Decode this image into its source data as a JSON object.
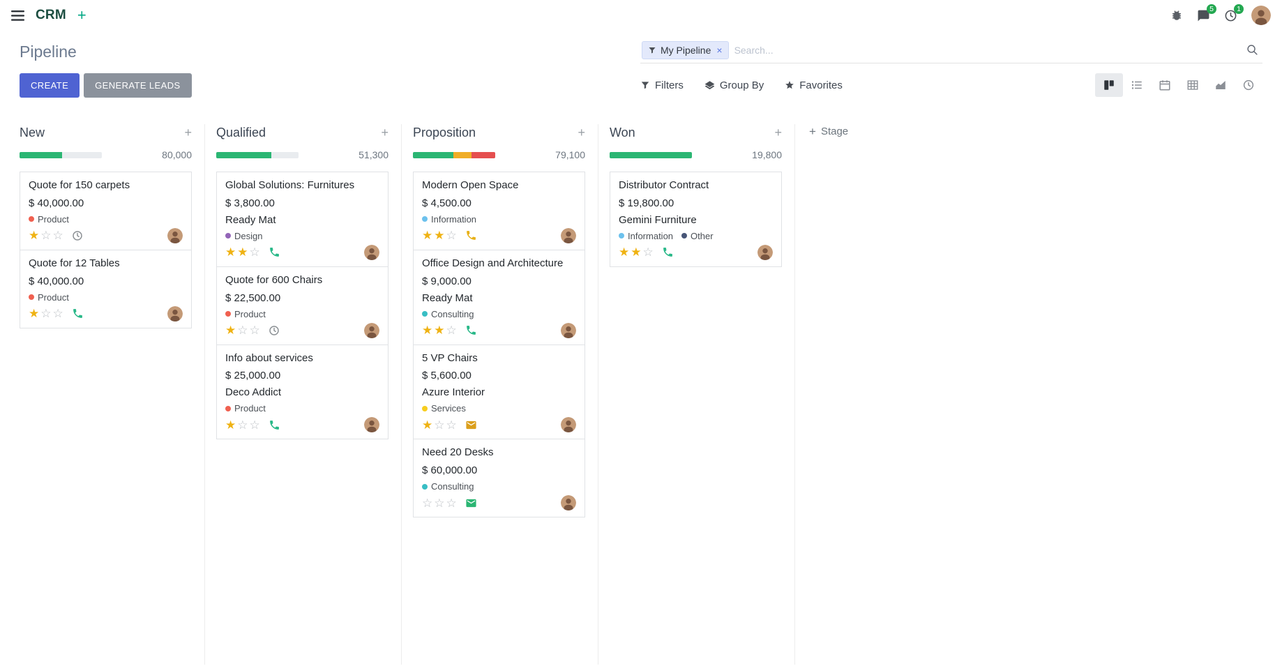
{
  "icons": {
    "plus": "+",
    "remove_facet": "×",
    "star_filled": "★",
    "star_empty": "☆"
  },
  "navbar": {
    "app_name": "CRM",
    "messages_badge": "5",
    "activities_badge": "1"
  },
  "control_panel": {
    "title": "Pipeline",
    "create_button": "CREATE",
    "generate_leads_button": "GENERATE LEADS",
    "search": {
      "facet_label": "My Pipeline",
      "placeholder": "Search..."
    },
    "toolbar": {
      "filters": "Filters",
      "group_by": "Group By",
      "favorites": "Favorites"
    }
  },
  "kanban": {
    "add_stage_label": "Stage",
    "columns": [
      {
        "name": "New",
        "count": "80,000",
        "progress": [
          {
            "color": "#2bb673",
            "pct": 52
          }
        ],
        "cards": [
          {
            "title": "Quote for 150 carpets",
            "amount": "$ 40,000.00",
            "company": "",
            "tags": [
              {
                "label": "Product",
                "color": "#f06050"
              }
            ],
            "stars": 1,
            "activity": {
              "type": "clock",
              "color": "#8b9094"
            }
          },
          {
            "title": "Quote for 12 Tables",
            "amount": "$ 40,000.00",
            "company": "",
            "tags": [
              {
                "label": "Product",
                "color": "#f06050"
              }
            ],
            "stars": 1,
            "activity": {
              "type": "phone",
              "color": "#28b888"
            }
          }
        ]
      },
      {
        "name": "Qualified",
        "count": "51,300",
        "progress": [
          {
            "color": "#2bb673",
            "pct": 67
          }
        ],
        "cards": [
          {
            "title": "Global Solutions: Furnitures",
            "amount": "$ 3,800.00",
            "company": "Ready Mat",
            "tags": [
              {
                "label": "Design",
                "color": "#9365b8"
              }
            ],
            "stars": 2,
            "activity": {
              "type": "phone",
              "color": "#28b888"
            }
          },
          {
            "title": "Quote for 600 Chairs",
            "amount": "$ 22,500.00",
            "company": "",
            "tags": [
              {
                "label": "Product",
                "color": "#f06050"
              }
            ],
            "stars": 1,
            "activity": {
              "type": "clock",
              "color": "#8b9094"
            }
          },
          {
            "title": "Info about services",
            "amount": "$ 25,000.00",
            "company": "Deco Addict",
            "tags": [
              {
                "label": "Product",
                "color": "#f06050"
              }
            ],
            "stars": 1,
            "activity": {
              "type": "phone",
              "color": "#28b888"
            }
          }
        ]
      },
      {
        "name": "Proposition",
        "count": "79,100",
        "progress": [
          {
            "color": "#2bb673",
            "pct": 49
          },
          {
            "color": "#f0ad27",
            "pct": 22
          },
          {
            "color": "#e54f4f",
            "pct": 29
          }
        ],
        "cards": [
          {
            "title": "Modern Open Space",
            "amount": "$ 4,500.00",
            "company": "",
            "tags": [
              {
                "label": "Information",
                "color": "#6cc1ed"
              }
            ],
            "stars": 2,
            "activity": {
              "type": "phone",
              "color": "#e8b117"
            }
          },
          {
            "title": "Office Design and Architecture",
            "amount": "$ 9,000.00",
            "company": "Ready Mat",
            "tags": [
              {
                "label": "Consulting",
                "color": "#38bec4"
              }
            ],
            "stars": 2,
            "activity": {
              "type": "phone",
              "color": "#28b888"
            }
          },
          {
            "title": "5 VP Chairs",
            "amount": "$ 5,600.00",
            "company": "Azure Interior",
            "tags": [
              {
                "label": "Services",
                "color": "#f7cd1f"
              }
            ],
            "stars": 1,
            "activity": {
              "type": "mail",
              "color": "#db9f1c"
            }
          },
          {
            "title": "Need 20 Desks",
            "amount": "$ 60,000.00",
            "company": "",
            "tags": [
              {
                "label": "Consulting",
                "color": "#38bec4"
              }
            ],
            "stars": 0,
            "activity": {
              "type": "mail",
              "color": "#2bb673"
            }
          }
        ]
      },
      {
        "name": "Won",
        "count": "19,800",
        "progress": [
          {
            "color": "#2bb673",
            "pct": 100
          }
        ],
        "cards": [
          {
            "title": "Distributor Contract",
            "amount": "$ 19,800.00",
            "company": "Gemini Furniture",
            "tags": [
              {
                "label": "Information",
                "color": "#6cc1ed"
              },
              {
                "label": "Other",
                "color": "#475577"
              }
            ],
            "stars": 2,
            "activity": {
              "type": "phone",
              "color": "#28b888"
            }
          }
        ]
      }
    ]
  }
}
